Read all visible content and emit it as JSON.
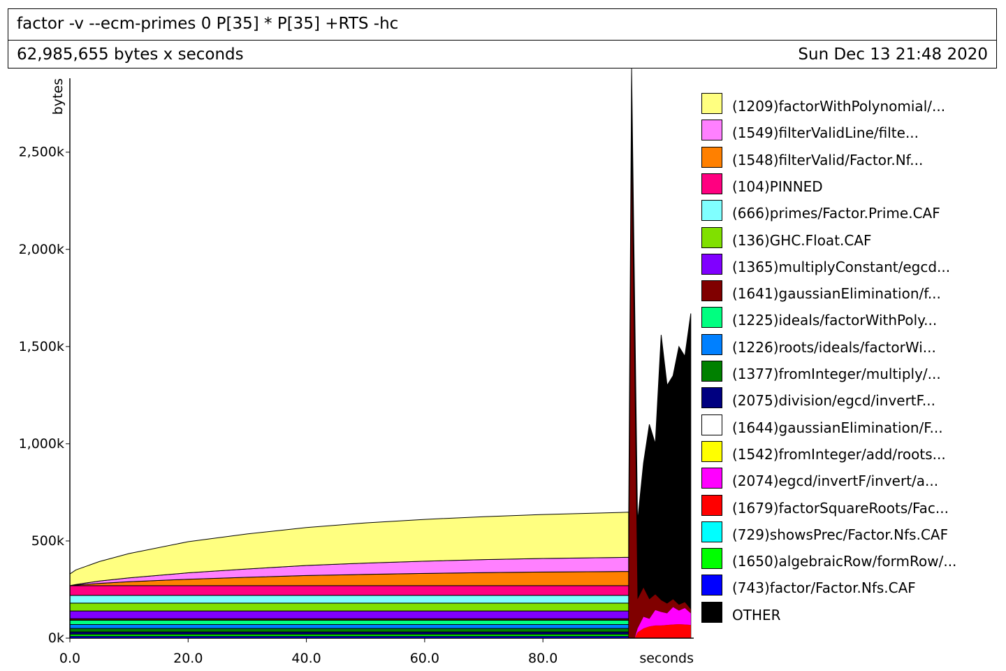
{
  "header": {
    "title": "factor -v --ecm-primes 0 P[35] * P[35] +RTS -hc",
    "total": "62,985,655 bytes x seconds",
    "date": "Sun Dec 13 21:48 2020"
  },
  "chart_data": {
    "type": "area",
    "stacked": true,
    "xlabel": "seconds",
    "ylabel": "bytes",
    "xlim": [
      0,
      105.5
    ],
    "ylim": [
      0,
      2880000
    ],
    "x_ticks": [
      {
        "value": 0,
        "label": "0.0"
      },
      {
        "value": 20,
        "label": "20.0"
      },
      {
        "value": 40,
        "label": "40.0"
      },
      {
        "value": 60,
        "label": "60.0"
      },
      {
        "value": 80,
        "label": "80.0"
      }
    ],
    "y_ticks": [
      {
        "value": 0,
        "label": "0k"
      },
      {
        "value": 500000,
        "label": "500k"
      },
      {
        "value": 1000000,
        "label": "1,000k"
      },
      {
        "value": 1500000,
        "label": "1,500k"
      },
      {
        "value": 2000000,
        "label": "2,000k"
      },
      {
        "value": 2500000,
        "label": "2,500k"
      }
    ],
    "grid": false,
    "legend_position": "right",
    "series": [
      {
        "name": "(1209)factorWithPolynomial/...",
        "color": "#ffff80"
      },
      {
        "name": "(1549)filterValidLine/filte...",
        "color": "#ff80ff"
      },
      {
        "name": "(1548)filterValid/Factor.Nf...",
        "color": "#ff8000"
      },
      {
        "name": "(104)PINNED",
        "color": "#ff0080"
      },
      {
        "name": "(666)primes/Factor.Prime.CAF",
        "color": "#80ffff"
      },
      {
        "name": "(136)GHC.Float.CAF",
        "color": "#80e000"
      },
      {
        "name": "(1365)multiplyConstant/egcd...",
        "color": "#8000ff"
      },
      {
        "name": "(1641)gaussianElimination/f...",
        "color": "#800000"
      },
      {
        "name": "(1225)ideals/factorWithPoly...",
        "color": "#00ff80"
      },
      {
        "name": "(1226)roots/ideals/factorWi...",
        "color": "#0080ff"
      },
      {
        "name": "(1377)fromInteger/multiply/...",
        "color": "#008000"
      },
      {
        "name": "(2075)division/egcd/invertF...",
        "color": "#000080"
      },
      {
        "name": "(1644)gaussianElimination/F...",
        "color": "#ffffff"
      },
      {
        "name": "(1542)fromInteger/add/roots...",
        "color": "#ffff00"
      },
      {
        "name": "(2074)egcd/invertF/invert/a...",
        "color": "#ff00ff"
      },
      {
        "name": "(1679)factorSquareRoots/Fac...",
        "color": "#ff0000"
      },
      {
        "name": "(729)showsPrec/Factor.Nfs.CAF",
        "color": "#00ffff"
      },
      {
        "name": "(1650)algebraicRow/formRow/...",
        "color": "#00ff00"
      },
      {
        "name": "(743)factor/Factor.Nfs.CAF",
        "color": "#0000ff"
      },
      {
        "name": "OTHER",
        "color": "#000000"
      }
    ],
    "phase1": {
      "x": [
        0,
        1,
        5,
        10,
        20,
        30,
        40,
        50,
        60,
        70,
        80,
        90,
        94.5
      ],
      "layers_bottom_to_top": [
        {
          "series": "(743)factor/Factor.Nfs.CAF",
          "values": [
            10000,
            10000,
            10000,
            10000,
            10000,
            10000,
            10000,
            10000,
            10000,
            10000,
            10000,
            10000,
            10000
          ]
        },
        {
          "series": "(1650)algebraicRow/formRow/...",
          "values": [
            10000,
            10000,
            10000,
            10000,
            10000,
            10000,
            10000,
            10000,
            10000,
            10000,
            10000,
            10000,
            10000
          ]
        },
        {
          "series": "(2075)division/egcd/invertF...",
          "values": [
            12000,
            12000,
            12000,
            12000,
            12000,
            12000,
            12000,
            12000,
            12000,
            12000,
            12000,
            12000,
            12000
          ]
        },
        {
          "series": "(1377)fromInteger/multiply/...",
          "values": [
            18000,
            18000,
            18000,
            18000,
            18000,
            18000,
            18000,
            18000,
            18000,
            18000,
            18000,
            18000,
            18000
          ]
        },
        {
          "series": "(1226)roots/ideals/factorWi...",
          "values": [
            20000,
            20000,
            20000,
            20000,
            20000,
            20000,
            20000,
            20000,
            20000,
            20000,
            20000,
            20000,
            20000
          ]
        },
        {
          "series": "(1225)ideals/factorWithPoly...",
          "values": [
            22000,
            22000,
            22000,
            22000,
            22000,
            22000,
            22000,
            22000,
            22000,
            22000,
            22000,
            22000,
            22000
          ]
        },
        {
          "series": "(1641)gaussianElimination/f...",
          "values": [
            8000,
            8000,
            8000,
            8000,
            8000,
            8000,
            8000,
            8000,
            8000,
            8000,
            8000,
            8000,
            8000
          ]
        },
        {
          "series": "(1365)multiplyConstant/egcd...",
          "values": [
            40000,
            40000,
            40000,
            40000,
            40000,
            40000,
            40000,
            40000,
            40000,
            40000,
            40000,
            40000,
            40000
          ]
        },
        {
          "series": "(136)GHC.Float.CAF",
          "values": [
            40000,
            40000,
            40000,
            40000,
            40000,
            40000,
            40000,
            40000,
            40000,
            40000,
            40000,
            40000,
            40000
          ]
        },
        {
          "series": "(666)primes/Factor.Prime.CAF",
          "values": [
            40000,
            40000,
            40000,
            40000,
            40000,
            40000,
            40000,
            40000,
            40000,
            40000,
            40000,
            40000,
            40000
          ]
        },
        {
          "series": "(104)PINNED",
          "values": [
            50000,
            50000,
            50000,
            50000,
            50000,
            50000,
            50000,
            50000,
            50000,
            50000,
            50000,
            50000,
            50000
          ]
        },
        {
          "series": "(1548)filterValid/Factor.Nf...",
          "values": [
            0,
            3000,
            12000,
            20000,
            33000,
            43000,
            52000,
            58000,
            63000,
            67000,
            70000,
            72000,
            73000
          ]
        },
        {
          "series": "(1549)filterValidLine/filte...",
          "values": [
            0,
            3000,
            12000,
            20000,
            33000,
            43000,
            52000,
            58000,
            63000,
            67000,
            70000,
            72000,
            73000
          ]
        },
        {
          "series": "(1209)factorWithPolynomial/...",
          "values": [
            60000,
            75000,
            100000,
            125000,
            160000,
            180000,
            195000,
            207000,
            215000,
            221000,
            226000,
            230000,
            232000
          ]
        }
      ]
    },
    "phase2": {
      "x": [
        94.5,
        95,
        95.5,
        96,
        97,
        98,
        99,
        100,
        101,
        102,
        103,
        104,
        105
      ],
      "total_values": [
        620000,
        2930000,
        1750000,
        600000,
        900000,
        1100000,
        1000000,
        1560000,
        1300000,
        1350000,
        1500000,
        1450000,
        1670000
      ],
      "layers_bottom_to_top": [
        {
          "series": "(1679)factorSquareRoots/Fac...",
          "values": [
            0,
            0,
            0,
            30000,
            50000,
            60000,
            65000,
            65000,
            68000,
            70000,
            72000,
            70000,
            68000
          ]
        },
        {
          "series": "(2074)egcd/invertF/invert/a...",
          "values": [
            0,
            0,
            0,
            20000,
            60000,
            40000,
            80000,
            70000,
            60000,
            90000,
            70000,
            85000,
            60000
          ]
        },
        {
          "series": "(1641)gaussianElimination/f...",
          "values": [
            0,
            2400000,
            1300000,
            150000,
            150000,
            100000,
            80000,
            60000,
            50000,
            40000,
            30000,
            30000,
            20000
          ]
        }
      ]
    }
  }
}
